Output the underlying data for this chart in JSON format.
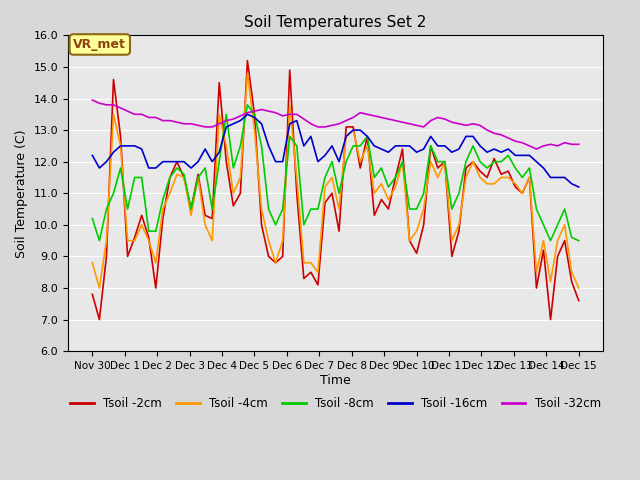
{
  "title": "Soil Temperatures Set 2",
  "xlabel": "Time",
  "ylabel": "Soil Temperature (C)",
  "ylim": [
    6.0,
    16.0
  ],
  "yticks": [
    6.0,
    7.0,
    8.0,
    9.0,
    10.0,
    11.0,
    12.0,
    13.0,
    14.0,
    15.0,
    16.0
  ],
  "xtick_labels": [
    "Nov 30",
    "Dec 1",
    "Dec 2",
    "Dec 3",
    "Dec 4",
    "Dec 5",
    "Dec 6",
    "Dec 7",
    "Dec 8",
    "Dec 9",
    "Dec 10",
    "Dec 11",
    "Dec 12",
    "Dec 13",
    "Dec 14",
    "Dec 15"
  ],
  "background_color": "#e8e8e8",
  "plot_bg_color": "#e8e8e8",
  "line_colors": {
    "tsoil_2cm": "#cc0000",
    "tsoil_4cm": "#ff9900",
    "tsoil_8cm": "#00cc00",
    "tsoil_16cm": "#0000cc",
    "tsoil_32cm": "#cc00cc"
  },
  "legend_labels": [
    "Tsoil -2cm",
    "Tsoil -4cm",
    "Tsoil -8cm",
    "Tsoil -16cm",
    "Tsoil -32cm"
  ],
  "annotation_text": "VR_met",
  "annotation_color": "#8b4513",
  "annotation_bg": "#ffff99",
  "tsoil_2cm": [
    7.8,
    7.0,
    9.0,
    14.6,
    12.8,
    9.0,
    9.6,
    10.3,
    9.6,
    8.0,
    10.2,
    11.5,
    12.0,
    11.5,
    10.5,
    11.6,
    10.3,
    10.2,
    14.5,
    12.0,
    10.6,
    11.0,
    15.2,
    13.5,
    10.0,
    9.0,
    8.8,
    9.0,
    14.9,
    11.0,
    8.3,
    8.5,
    8.1,
    10.7,
    11.0,
    9.8,
    13.1,
    13.1,
    11.8,
    12.8,
    10.3,
    10.8,
    10.5,
    11.5,
    12.4,
    9.5,
    9.1,
    10.0,
    12.5,
    11.8,
    12.0,
    9.0,
    9.8,
    11.8,
    12.0,
    11.7,
    11.5,
    12.1,
    11.6,
    11.7,
    11.2,
    11.0,
    11.5,
    8.0,
    9.2,
    7.0,
    9.0,
    9.5,
    8.2,
    7.6
  ],
  "tsoil_4cm": [
    8.8,
    8.0,
    9.5,
    13.5,
    12.5,
    9.5,
    9.5,
    10.0,
    9.5,
    8.8,
    10.5,
    11.0,
    11.6,
    11.5,
    10.3,
    11.5,
    10.0,
    9.5,
    13.5,
    12.5,
    11.0,
    11.5,
    14.8,
    13.0,
    10.5,
    9.5,
    8.8,
    9.5,
    13.8,
    11.5,
    8.8,
    8.8,
    8.5,
    11.2,
    11.5,
    10.5,
    12.8,
    13.0,
    12.0,
    12.5,
    11.0,
    11.3,
    10.8,
    11.2,
    12.0,
    9.5,
    9.8,
    10.5,
    12.0,
    11.5,
    12.0,
    9.5,
    10.0,
    11.5,
    12.0,
    11.5,
    11.3,
    11.3,
    11.5,
    11.5,
    11.3,
    11.0,
    11.5,
    8.5,
    9.5,
    8.2,
    9.5,
    10.0,
    8.5,
    8.0
  ],
  "tsoil_8cm": [
    10.2,
    9.5,
    10.5,
    11.0,
    11.8,
    10.5,
    11.5,
    11.5,
    9.8,
    9.8,
    10.8,
    11.5,
    11.8,
    11.6,
    10.5,
    11.5,
    11.8,
    10.5,
    12.0,
    13.5,
    11.8,
    12.5,
    13.8,
    13.5,
    12.5,
    10.5,
    10.0,
    10.5,
    12.8,
    12.5,
    10.0,
    10.5,
    10.5,
    11.5,
    12.0,
    11.0,
    12.0,
    12.5,
    12.5,
    12.8,
    11.5,
    11.8,
    11.2,
    11.5,
    12.0,
    10.5,
    10.5,
    11.0,
    12.5,
    12.0,
    12.0,
    10.5,
    11.0,
    12.0,
    12.5,
    12.0,
    11.8,
    12.0,
    12.0,
    12.2,
    11.8,
    11.5,
    11.8,
    10.5,
    10.0,
    9.5,
    10.0,
    10.5,
    9.6,
    9.5
  ],
  "tsoil_16cm": [
    12.2,
    11.8,
    12.0,
    12.3,
    12.5,
    12.5,
    12.5,
    12.4,
    11.8,
    11.8,
    12.0,
    12.0,
    12.0,
    12.0,
    11.8,
    12.0,
    12.4,
    12.0,
    12.3,
    13.1,
    13.2,
    13.3,
    13.5,
    13.4,
    13.2,
    12.5,
    12.0,
    12.0,
    13.2,
    13.3,
    12.5,
    12.8,
    12.0,
    12.2,
    12.5,
    12.0,
    12.8,
    13.0,
    13.0,
    12.8,
    12.5,
    12.4,
    12.3,
    12.5,
    12.5,
    12.5,
    12.3,
    12.4,
    12.8,
    12.5,
    12.5,
    12.3,
    12.4,
    12.8,
    12.8,
    12.5,
    12.3,
    12.4,
    12.3,
    12.4,
    12.2,
    12.2,
    12.2,
    12.0,
    11.8,
    11.5,
    11.5,
    11.5,
    11.3,
    11.2
  ],
  "tsoil_32cm": [
    13.95,
    13.85,
    13.8,
    13.8,
    13.7,
    13.6,
    13.5,
    13.5,
    13.4,
    13.4,
    13.3,
    13.3,
    13.25,
    13.2,
    13.2,
    13.15,
    13.1,
    13.1,
    13.2,
    13.3,
    13.35,
    13.45,
    13.55,
    13.6,
    13.65,
    13.6,
    13.55,
    13.45,
    13.5,
    13.5,
    13.35,
    13.2,
    13.1,
    13.1,
    13.15,
    13.2,
    13.3,
    13.4,
    13.55,
    13.5,
    13.45,
    13.4,
    13.35,
    13.3,
    13.25,
    13.2,
    13.15,
    13.1,
    13.3,
    13.4,
    13.35,
    13.25,
    13.2,
    13.15,
    13.2,
    13.15,
    13.0,
    12.9,
    12.85,
    12.75,
    12.65,
    12.6,
    12.5,
    12.4,
    12.5,
    12.55,
    12.5,
    12.6,
    12.55,
    12.55
  ]
}
